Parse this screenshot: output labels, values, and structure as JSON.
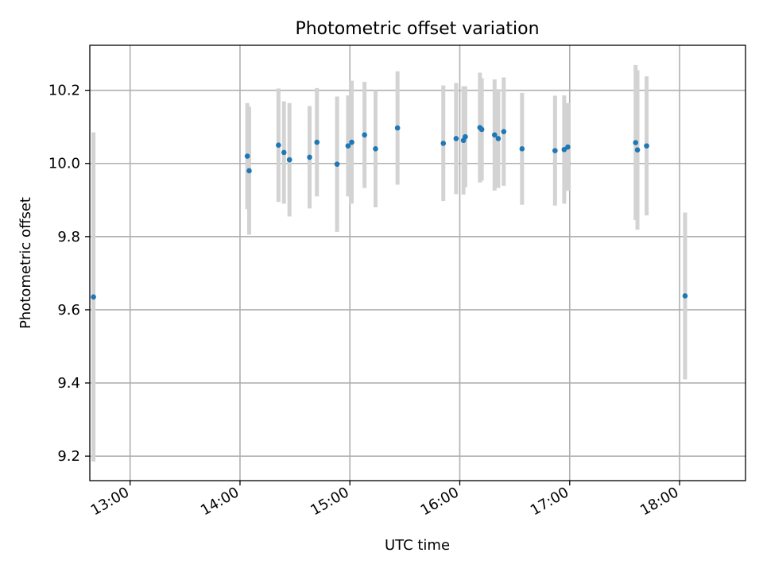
{
  "chart_data": {
    "type": "scatter",
    "title": "Photometric offset variation",
    "xlabel": "UTC time",
    "ylabel": "Photometric offset",
    "x_ticks": [
      "13:00",
      "14:00",
      "15:00",
      "16:00",
      "17:00",
      "18:00"
    ],
    "y_ticks": [
      "9.2",
      "9.4",
      "9.6",
      "9.8",
      "10.0",
      "10.2"
    ],
    "xlim": [
      "12:38",
      "18:36"
    ],
    "ylim": [
      9.133,
      10.323
    ],
    "grid": true,
    "colors": {
      "point": "#1f77b4",
      "error_bar": "#d3d3d3",
      "grid": "#b0b0b0"
    },
    "points": [
      {
        "time": "12:40",
        "value": 9.635,
        "err": 0.45
      },
      {
        "time": "14:04",
        "value": 10.02,
        "err": 0.145
      },
      {
        "time": "14:05",
        "value": 9.98,
        "err": 0.175
      },
      {
        "time": "14:21",
        "value": 10.05,
        "err": 0.155
      },
      {
        "time": "14:24",
        "value": 10.03,
        "err": 0.14
      },
      {
        "time": "14:27",
        "value": 10.01,
        "err": 0.155
      },
      {
        "time": "14:38",
        "value": 10.017,
        "err": 0.14
      },
      {
        "time": "14:42",
        "value": 10.058,
        "err": 0.148
      },
      {
        "time": "14:53",
        "value": 9.998,
        "err": 0.185
      },
      {
        "time": "14:59",
        "value": 10.048,
        "err": 0.138
      },
      {
        "time": "15:01",
        "value": 10.058,
        "err": 0.168
      },
      {
        "time": "15:08",
        "value": 10.078,
        "err": 0.145
      },
      {
        "time": "15:14",
        "value": 10.04,
        "err": 0.16
      },
      {
        "time": "15:26",
        "value": 10.097,
        "err": 0.155
      },
      {
        "time": "15:51",
        "value": 10.055,
        "err": 0.158
      },
      {
        "time": "15:58",
        "value": 10.068,
        "err": 0.152
      },
      {
        "time": "16:02",
        "value": 10.063,
        "err": 0.148
      },
      {
        "time": "16:03",
        "value": 10.073,
        "err": 0.138
      },
      {
        "time": "16:11",
        "value": 10.098,
        "err": 0.15
      },
      {
        "time": "16:12",
        "value": 10.093,
        "err": 0.14
      },
      {
        "time": "16:19",
        "value": 10.078,
        "err": 0.152
      },
      {
        "time": "16:21",
        "value": 10.068,
        "err": 0.135
      },
      {
        "time": "16:24",
        "value": 10.087,
        "err": 0.148
      },
      {
        "time": "16:34",
        "value": 10.04,
        "err": 0.153
      },
      {
        "time": "16:52",
        "value": 10.035,
        "err": 0.15
      },
      {
        "time": "16:57",
        "value": 10.038,
        "err": 0.148
      },
      {
        "time": "16:59",
        "value": 10.045,
        "err": 0.12
      },
      {
        "time": "17:36",
        "value": 10.057,
        "err": 0.212
      },
      {
        "time": "17:37",
        "value": 10.037,
        "err": 0.218
      },
      {
        "time": "17:42",
        "value": 10.048,
        "err": 0.19
      },
      {
        "time": "18:03",
        "value": 9.638,
        "err": 0.228
      }
    ]
  }
}
